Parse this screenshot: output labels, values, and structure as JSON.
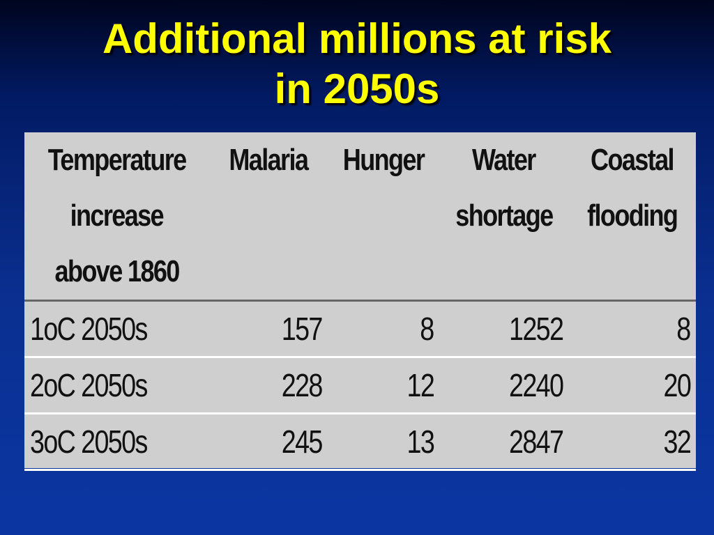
{
  "slide": {
    "title_line1": "Additional millions at risk",
    "title_line2": "in 2050s"
  },
  "table": {
    "headers": {
      "temperature": [
        "Temperature",
        "increase",
        "above 1860"
      ],
      "malaria": "Malaria",
      "hunger": "Hunger",
      "water": [
        "Water",
        "shortage"
      ],
      "coastal": [
        "Coastal",
        "flooding"
      ]
    },
    "rows": [
      {
        "label": "1oC 2050s",
        "malaria": "157",
        "hunger": "8",
        "water": "1252",
        "coastal": "8"
      },
      {
        "label": "2oC 2050s",
        "malaria": "228",
        "hunger": "12",
        "water": "2240",
        "coastal": "20"
      },
      {
        "label": "3oC 2050s",
        "malaria": "245",
        "hunger": "13",
        "water": "2847",
        "coastal": "32"
      }
    ]
  },
  "colors": {
    "title": "#ffff00",
    "table_background": "#cfcfcf",
    "background_top": "#00051f",
    "background_bottom": "#0b36a2"
  }
}
